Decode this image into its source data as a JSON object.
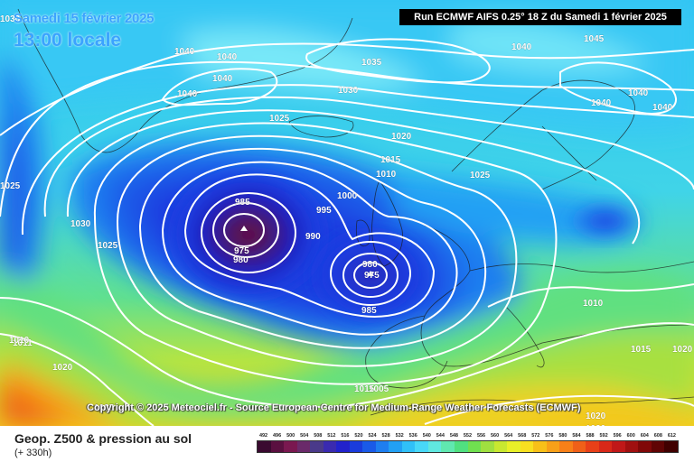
{
  "header": {
    "date": "Samedi 15 février 2025",
    "local_time": "13:00 locale",
    "run_info": "Run ECMWF AIFS 0.25° 18 Z du Samedi 1 février 2025"
  },
  "footer": {
    "copyright": "Copyright © 2025 Meteociel.fr - Source European Centre for Medium-Range Weather Forecasts (ECMWF)",
    "field_name": "Geop. Z500 & pression au sol",
    "lead_time": "(+ 330h)"
  },
  "map": {
    "isobar_labels": [
      "1030",
      "1040",
      "1040",
      "1040",
      "1040",
      "1035",
      "1030",
      "1025",
      "1020",
      "1015",
      "1010",
      "1000",
      "995",
      "990",
      "985",
      "975",
      "980",
      "980",
      "975",
      "985",
      "1025",
      "1030",
      "1025",
      "1040",
      "1045",
      "1040",
      "1040",
      "1040",
      "1025",
      "1010",
      "1015",
      "1020",
      "1025",
      "1015",
      "1020",
      "1011",
      "1010",
      "1005",
      "1025",
      "1020",
      "1020"
    ],
    "legend_colors": [
      "#3a0a30",
      "#5a1040",
      "#7a1850",
      "#6a2a6a",
      "#4a3a8a",
      "#3a2ab0",
      "#2222cc",
      "#1a3cdc",
      "#1a5ae8",
      "#1e7ef0",
      "#22a0f4",
      "#30c0f8",
      "#48d8f8",
      "#60e8e0",
      "#60e8b0",
      "#50e080",
      "#70e050",
      "#a0e040",
      "#c8e830",
      "#e8f028",
      "#f8e020",
      "#f8c018",
      "#f8a018",
      "#f88018",
      "#f06018",
      "#e84018",
      "#d82818",
      "#c01818",
      "#a01010",
      "#800808",
      "#600404",
      "#400000"
    ]
  },
  "legend": {
    "scale_labels": [
      "492",
      "496",
      "500",
      "504",
      "508",
      "512",
      "516",
      "520",
      "524",
      "528",
      "532",
      "536",
      "540",
      "544",
      "548",
      "552",
      "556",
      "560",
      "564",
      "568",
      "572",
      "576",
      "580",
      "584",
      "588",
      "592",
      "596",
      "600",
      "604",
      "608",
      "612"
    ]
  }
}
